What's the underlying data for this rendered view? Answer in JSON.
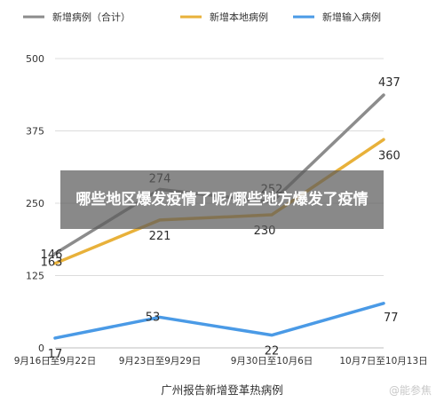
{
  "chart_data": {
    "type": "line",
    "title": "",
    "xlabel": "广州报告新增登革热病例",
    "ylabel": "",
    "categories": [
      "9月16日至9月22日",
      "9月23日至9月29日",
      "9月30日至10月6日",
      "10月7日至10月13日"
    ],
    "ylim": [
      0,
      500
    ],
    "yticks": [
      "0",
      "125",
      "250",
      "375",
      "500"
    ],
    "grid": true,
    "legend_position": "top",
    "series": [
      {
        "name": "新增病例（合计）",
        "color": "#8c8c8c",
        "values": [
          163,
          274,
          252,
          437
        ],
        "labels": [
          "163",
          "274",
          "252",
          "437"
        ]
      },
      {
        "name": "新增本地病例",
        "color": "#e8b13a",
        "values": [
          146,
          221,
          230,
          360
        ],
        "labels": [
          "146",
          "221",
          "230",
          "360"
        ]
      },
      {
        "name": "新增输入病例",
        "color": "#4a9ae6",
        "values": [
          17,
          53,
          22,
          77
        ],
        "labels": [
          "17",
          "53",
          "22",
          "77"
        ]
      }
    ]
  },
  "overlay": {
    "banner_text": "哪些地区爆发疫情了呢/哪些地方爆发了疫情"
  },
  "watermark": {
    "text": "@能参焦"
  }
}
